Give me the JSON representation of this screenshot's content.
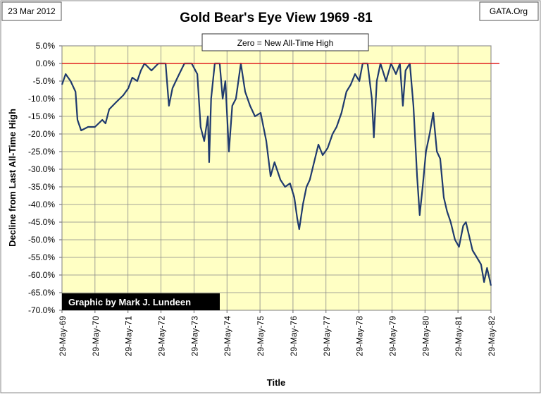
{
  "chart_data": {
    "type": "line",
    "title": "Gold Bear's Eye View 1969 -81",
    "date_note": "23 Mar 2012",
    "source": "GATA.Org",
    "annotation": "Zero = New All-Time High",
    "credit": "Graphic by Mark J. Lundeen",
    "x_label": "Title",
    "y_label": "Decline from Last All-Time High",
    "x": [
      1969.41,
      1969.52,
      1969.67,
      1969.82,
      1969.88,
      1969.99,
      1970.2,
      1970.41,
      1970.63,
      1970.73,
      1970.84,
      1971.05,
      1971.27,
      1971.42,
      1971.54,
      1971.69,
      1971.8,
      1971.91,
      1972.12,
      1972.33,
      1972.55,
      1972.65,
      1972.76,
      1972.91,
      1973.12,
      1973.34,
      1973.51,
      1973.61,
      1973.72,
      1973.83,
      1973.87,
      1973.93,
      1974.04,
      1974.19,
      1974.28,
      1974.36,
      1974.47,
      1974.57,
      1974.68,
      1974.83,
      1974.96,
      1975.11,
      1975.26,
      1975.43,
      1975.6,
      1975.73,
      1975.85,
      1976.03,
      1976.17,
      1976.32,
      1976.45,
      1976.54,
      1976.6,
      1976.71,
      1976.82,
      1976.92,
      1977.05,
      1977.18,
      1977.31,
      1977.46,
      1977.61,
      1977.73,
      1977.88,
      1978.03,
      1978.16,
      1978.29,
      1978.42,
      1978.52,
      1978.67,
      1978.8,
      1978.86,
      1978.95,
      1979.06,
      1979.23,
      1979.38,
      1979.53,
      1979.65,
      1979.74,
      1979.82,
      1979.95,
      1980.06,
      1980.17,
      1980.25,
      1980.34,
      1980.44,
      1980.55,
      1980.66,
      1980.77,
      1980.87,
      1980.98,
      1981.08,
      1981.19,
      1981.32,
      1981.44,
      1981.57,
      1981.65,
      1981.75,
      1981.85,
      1981.98,
      1982.11,
      1982.2,
      1982.29,
      1982.41
    ],
    "series": [
      {
        "name": "Decline",
        "color": "#1f3a6e",
        "values": [
          -6,
          -3,
          -5,
          -8,
          -16,
          -19,
          -18,
          -18,
          -16,
          -17,
          -13,
          -11,
          -9,
          -7,
          -4,
          -5,
          -2,
          0,
          -2,
          0,
          0,
          -12,
          -7,
          -4,
          0,
          0,
          -3,
          -18,
          -22,
          -15,
          -28,
          -10,
          0,
          0,
          -10,
          -5,
          -25,
          -12,
          -10,
          0,
          -8,
          -12,
          -15,
          -14,
          -22,
          -32,
          -28,
          -33,
          -35,
          -34,
          -38,
          -44,
          -47,
          -40,
          -35,
          -33,
          -28,
          -23,
          -26,
          -24,
          -20,
          -18,
          -14,
          -8,
          -6,
          -3,
          -5,
          0,
          0,
          -10,
          -21,
          -5,
          0,
          -5,
          0,
          -3,
          0,
          -12,
          -2,
          0,
          -12,
          -32,
          -43,
          -35,
          -25,
          -20,
          -14,
          -25,
          -27,
          -38,
          -42,
          -45,
          -50,
          -52,
          -46,
          -45,
          -49,
          -53,
          -55,
          -57,
          -62,
          -58,
          -63
        ]
      }
    ],
    "xlim": [
      1969.41,
      1982.41
    ],
    "xticks": [
      {
        "value": 1969.41,
        "label": "29-May-69"
      },
      {
        "value": 1970.41,
        "label": "29-May-70"
      },
      {
        "value": 1971.41,
        "label": "29-May-71"
      },
      {
        "value": 1972.41,
        "label": "29-May-72"
      },
      {
        "value": 1973.41,
        "label": "29-May-73"
      },
      {
        "value": 1974.41,
        "label": "29-May-74"
      },
      {
        "value": 1975.41,
        "label": "29-May-75"
      },
      {
        "value": 1976.41,
        "label": "29-May-76"
      },
      {
        "value": 1977.41,
        "label": "29-May-77"
      },
      {
        "value": 1978.41,
        "label": "29-May-78"
      },
      {
        "value": 1979.41,
        "label": "29-May-79"
      },
      {
        "value": 1980.41,
        "label": "29-May-80"
      },
      {
        "value": 1981.41,
        "label": "29-May-81"
      },
      {
        "value": 1982.41,
        "label": "29-May-82"
      }
    ],
    "ylim": [
      -70,
      5
    ],
    "yticks": [
      {
        "value": 5,
        "label": "5.0%"
      },
      {
        "value": 0,
        "label": "0.0%"
      },
      {
        "value": -5,
        "label": "-5.0%"
      },
      {
        "value": -10,
        "label": "-10.0%"
      },
      {
        "value": -15,
        "label": "-15.0%"
      },
      {
        "value": -20,
        "label": "-20.0%"
      },
      {
        "value": -25,
        "label": "-25.0%"
      },
      {
        "value": -30,
        "label": "-30.0%"
      },
      {
        "value": -35,
        "label": "-35.0%"
      },
      {
        "value": -40,
        "label": "-40.0%"
      },
      {
        "value": -45,
        "label": "-45.0%"
      },
      {
        "value": -50,
        "label": "-50.0%"
      },
      {
        "value": -55,
        "label": "-55.0%"
      },
      {
        "value": -60,
        "label": "-60.0%"
      },
      {
        "value": -65,
        "label": "-65.0%"
      },
      {
        "value": -70,
        "label": "-70.0%"
      }
    ],
    "reference_line": {
      "value": 0,
      "color": "#e02020"
    },
    "grid": true,
    "plot_background": "#ffffc4"
  }
}
